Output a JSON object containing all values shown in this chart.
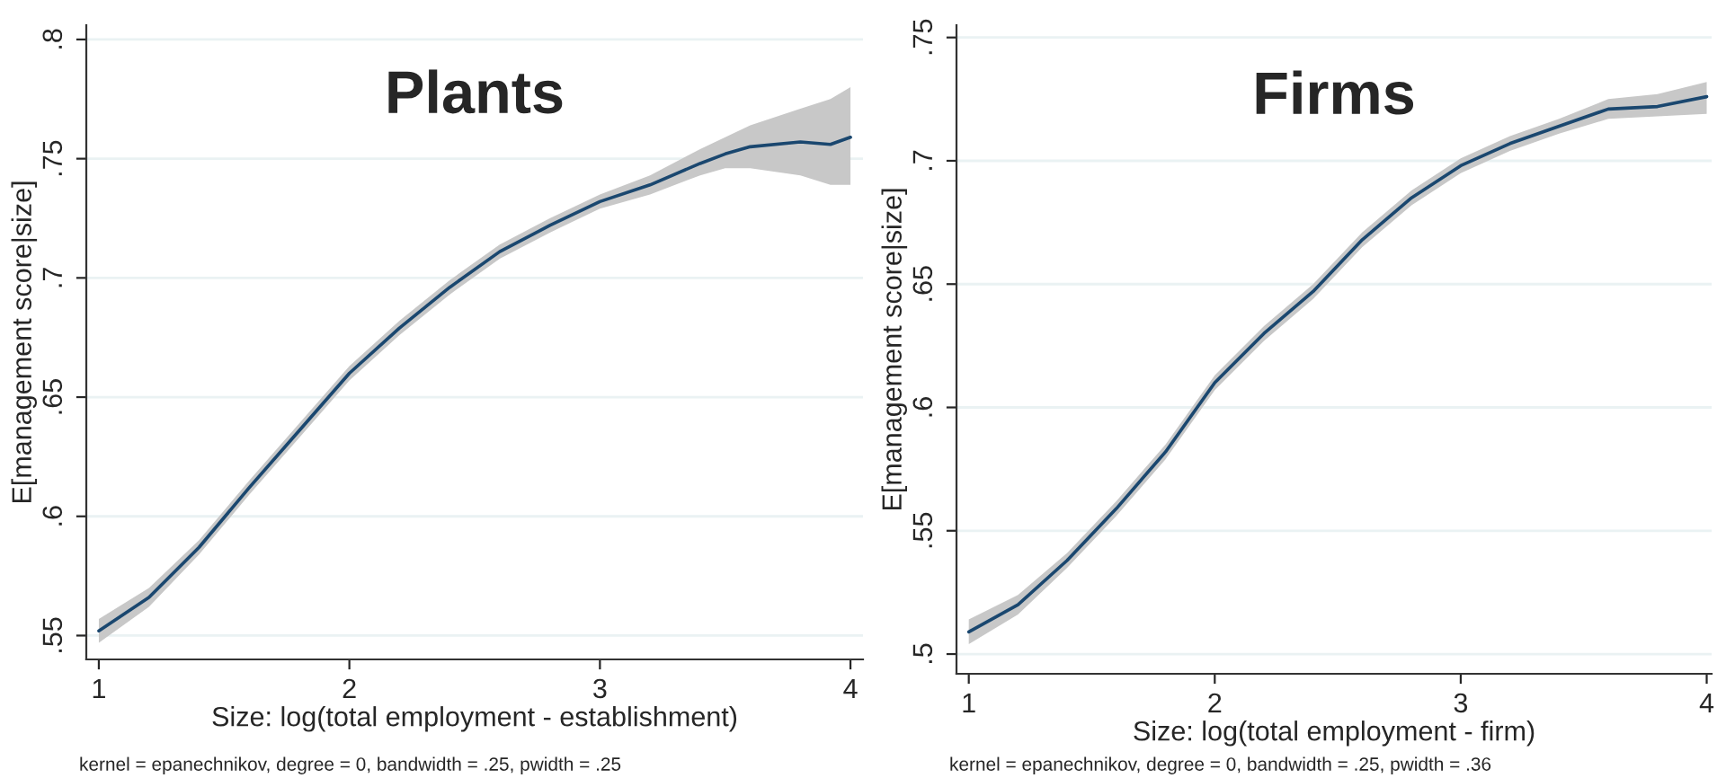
{
  "chart_data": [
    {
      "type": "line",
      "title": "Plants",
      "xlabel": "Size: log(total employment - establishment)",
      "ylabel": "E[management score|size]",
      "annotations": [
        "kernel = epanechnikov, degree = 0, bandwidth = .25, pwidth = .25"
      ],
      "x": [
        1.0,
        1.2,
        1.4,
        1.6,
        1.8,
        2.0,
        2.2,
        2.4,
        2.6,
        2.8,
        3.0,
        3.2,
        3.4,
        3.5,
        3.6,
        3.8,
        3.92,
        4.0
      ],
      "series": [
        {
          "color": "#1a476f",
          "values": [
            0.552,
            0.566,
            0.587,
            0.612,
            0.636,
            0.66,
            0.679,
            0.696,
            0.711,
            0.722,
            0.732,
            0.739,
            0.748,
            0.752,
            0.755,
            0.757,
            0.756,
            0.759
          ],
          "lower": [
            0.547,
            0.562,
            0.584,
            0.609,
            0.633,
            0.657,
            0.676,
            0.693,
            0.708,
            0.719,
            0.729,
            0.735,
            0.743,
            0.746,
            0.746,
            0.743,
            0.739,
            0.739
          ],
          "upper": [
            0.557,
            0.57,
            0.59,
            0.615,
            0.639,
            0.663,
            0.682,
            0.699,
            0.714,
            0.725,
            0.735,
            0.743,
            0.754,
            0.759,
            0.764,
            0.771,
            0.775,
            0.78
          ]
        }
      ],
      "xlim": [
        0.95,
        4.05
      ],
      "ylim": [
        0.54,
        0.806
      ],
      "xticks": [
        1,
        2,
        3,
        4
      ],
      "yticks": [
        {
          "value": 0.55,
          "label": ".55"
        },
        {
          "value": 0.6,
          "label": ".6"
        },
        {
          "value": 0.65,
          "label": ".65"
        },
        {
          "value": 0.7,
          "label": ".7"
        },
        {
          "value": 0.75,
          "label": ".75"
        },
        {
          "value": 0.8,
          "label": ".8"
        }
      ],
      "grid": "y",
      "legend": false,
      "line_style": "solid",
      "marker": "none"
    },
    {
      "type": "line",
      "title": "Firms",
      "xlabel": "Size: log(total employment - firm)",
      "ylabel": "E[management score|size]",
      "annotations": [
        "kernel = epanechnikov, degree = 0, bandwidth = .25, pwidth = .36"
      ],
      "x": [
        1.0,
        1.2,
        1.4,
        1.6,
        1.8,
        2.0,
        2.2,
        2.4,
        2.6,
        2.8,
        3.0,
        3.2,
        3.4,
        3.6,
        3.8,
        4.0
      ],
      "series": [
        {
          "color": "#1a476f",
          "values": [
            0.509,
            0.52,
            0.538,
            0.559,
            0.582,
            0.61,
            0.63,
            0.647,
            0.668,
            0.685,
            0.698,
            0.707,
            0.714,
            0.721,
            0.722,
            0.726
          ],
          "lower": [
            0.504,
            0.516,
            0.535,
            0.556,
            0.579,
            0.607,
            0.627,
            0.644,
            0.665,
            0.682,
            0.695,
            0.704,
            0.711,
            0.717,
            0.718,
            0.719
          ],
          "upper": [
            0.514,
            0.524,
            0.541,
            0.562,
            0.585,
            0.613,
            0.633,
            0.65,
            0.671,
            0.688,
            0.701,
            0.71,
            0.717,
            0.725,
            0.727,
            0.732
          ]
        }
      ],
      "xlim": [
        0.95,
        4.02
      ],
      "ylim": [
        0.492,
        0.755
      ],
      "xticks": [
        1,
        2,
        3,
        4
      ],
      "yticks": [
        {
          "value": 0.5,
          "label": ".5"
        },
        {
          "value": 0.55,
          "label": ".55"
        },
        {
          "value": 0.6,
          "label": ".6"
        },
        {
          "value": 0.65,
          "label": ".65"
        },
        {
          "value": 0.7,
          "label": ".7"
        },
        {
          "value": 0.75,
          "label": ".75"
        }
      ],
      "grid": "y",
      "legend": false,
      "line_style": "solid",
      "marker": "none"
    }
  ]
}
